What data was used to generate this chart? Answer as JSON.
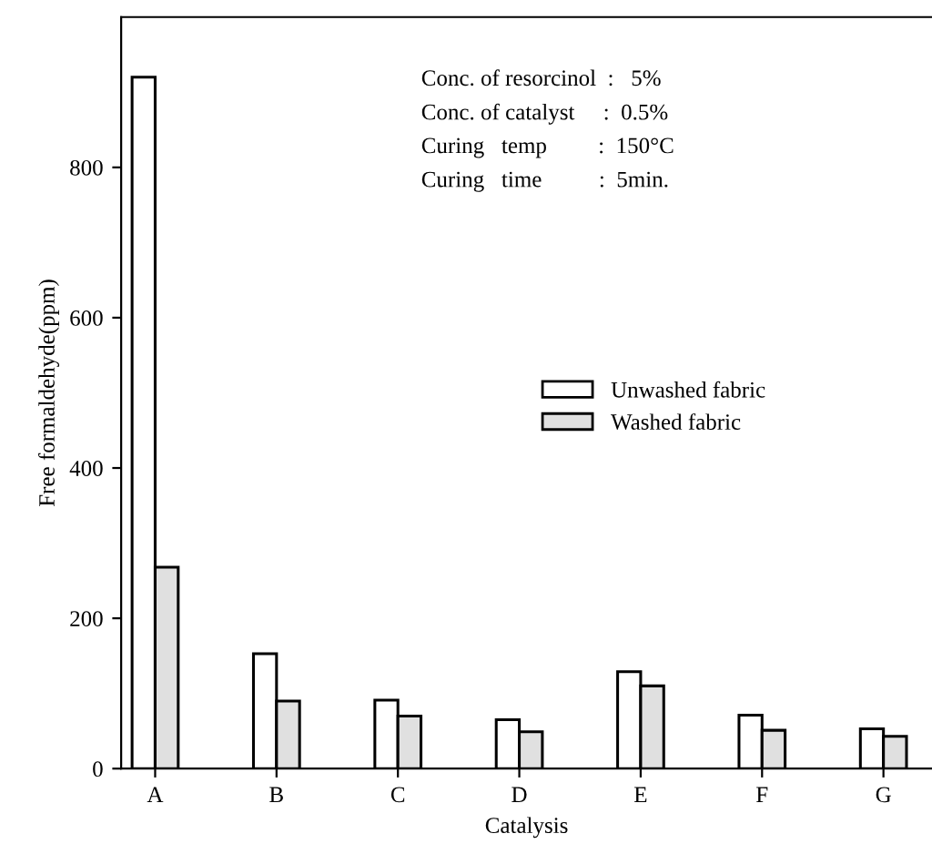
{
  "chart_data": {
    "type": "bar",
    "xlabel": "Catalysis",
    "ylabel": "Free formaldehyde(ppm)",
    "categories": [
      "A",
      "B",
      "C",
      "D",
      "E",
      "F",
      "G"
    ],
    "series": [
      {
        "name": "Unwashed fabric",
        "color": "#ffffff",
        "values": [
          920,
          153,
          91,
          65,
          129,
          71,
          53
        ]
      },
      {
        "name": "Washed fabric",
        "color": "#e0e0e0",
        "values": [
          268,
          90,
          70,
          49,
          110,
          51,
          43
        ]
      }
    ],
    "ylim": [
      0,
      1000
    ],
    "yticks": [
      0,
      200,
      400,
      600,
      800
    ],
    "grid": false,
    "legend": "center right",
    "annotations": [
      "Conc. of resorcinol  :   5%",
      "Conc. of catalyst     :  0.5%",
      "Curing   temp         :  150°C",
      "Curing   time          :  5min."
    ]
  }
}
